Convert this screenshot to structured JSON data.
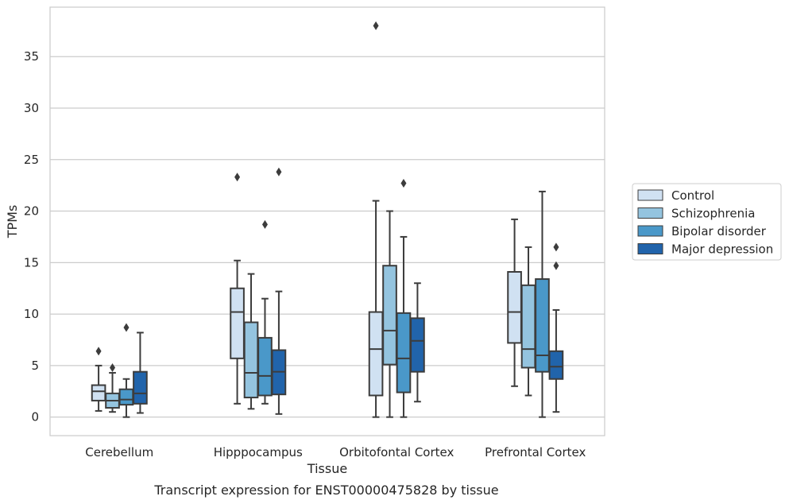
{
  "chart_data": {
    "type": "box",
    "caption": "Transcript expression for ENST00000475828 by tissue",
    "xlabel": "Tissue",
    "ylabel": "TPMs",
    "ylim": [
      -1.8,
      39.8
    ],
    "yticks": [
      0,
      5,
      10,
      15,
      20,
      25,
      30,
      35
    ],
    "grid": true,
    "legend_position": "right",
    "categories": [
      "Cerebellum",
      "Hipppocampus",
      "Orbitofontal Cortex",
      "Prefrontal Cortex"
    ],
    "series": [
      {
        "name": "Control",
        "color": "#d0e1f2",
        "boxes": [
          {
            "whislo": 0.6,
            "q1": 1.6,
            "med": 2.5,
            "q3": 3.1,
            "whishi": 5.0,
            "fliers": [
              6.4
            ]
          },
          {
            "whislo": 1.3,
            "q1": 5.7,
            "med": 10.2,
            "q3": 12.5,
            "whishi": 15.2,
            "fliers": [
              23.3
            ]
          },
          {
            "whislo": 0.0,
            "q1": 2.1,
            "med": 6.6,
            "q3": 10.2,
            "whishi": 21.0,
            "fliers": [
              38.0
            ]
          },
          {
            "whislo": 3.0,
            "q1": 7.2,
            "med": 10.2,
            "q3": 14.1,
            "whishi": 19.2,
            "fliers": []
          }
        ]
      },
      {
        "name": "Schizophrenia",
        "color": "#94c4df",
        "boxes": [
          {
            "whislo": 0.5,
            "q1": 0.9,
            "med": 1.6,
            "q3": 2.3,
            "whishi": 4.3,
            "fliers": [
              4.8
            ]
          },
          {
            "whislo": 0.8,
            "q1": 1.9,
            "med": 4.3,
            "q3": 9.2,
            "whishi": 13.9,
            "fliers": []
          },
          {
            "whislo": 0.0,
            "q1": 5.1,
            "med": 8.4,
            "q3": 14.7,
            "whishi": 20.0,
            "fliers": []
          },
          {
            "whislo": 2.1,
            "q1": 4.8,
            "med": 6.6,
            "q3": 12.8,
            "whishi": 16.5,
            "fliers": []
          }
        ]
      },
      {
        "name": "Bipolar disorder",
        "color": "#4a98c9",
        "boxes": [
          {
            "whislo": 0.0,
            "q1": 1.2,
            "med": 1.7,
            "q3": 2.7,
            "whishi": 3.7,
            "fliers": [
              8.7
            ]
          },
          {
            "whislo": 1.3,
            "q1": 2.1,
            "med": 4.0,
            "q3": 7.7,
            "whishi": 11.5,
            "fliers": [
              18.7
            ]
          },
          {
            "whislo": 0.0,
            "q1": 2.4,
            "med": 5.7,
            "q3": 10.1,
            "whishi": 17.5,
            "fliers": [
              22.7
            ]
          },
          {
            "whislo": 0.0,
            "q1": 4.4,
            "med": 6.0,
            "q3": 13.4,
            "whishi": 21.9,
            "fliers": []
          }
        ]
      },
      {
        "name": "Major depression",
        "color": "#2164ab",
        "boxes": [
          {
            "whislo": 0.4,
            "q1": 1.3,
            "med": 2.3,
            "q3": 4.4,
            "whishi": 8.2,
            "fliers": []
          },
          {
            "whislo": 0.3,
            "q1": 2.2,
            "med": 4.4,
            "q3": 6.5,
            "whishi": 12.2,
            "fliers": [
              23.8
            ]
          },
          {
            "whislo": 1.5,
            "q1": 4.4,
            "med": 7.4,
            "q3": 9.6,
            "whishi": 13.0,
            "fliers": []
          },
          {
            "whislo": 0.5,
            "q1": 3.7,
            "med": 4.9,
            "q3": 6.4,
            "whishi": 10.4,
            "fliers": [
              14.7,
              16.5
            ]
          }
        ]
      }
    ]
  }
}
